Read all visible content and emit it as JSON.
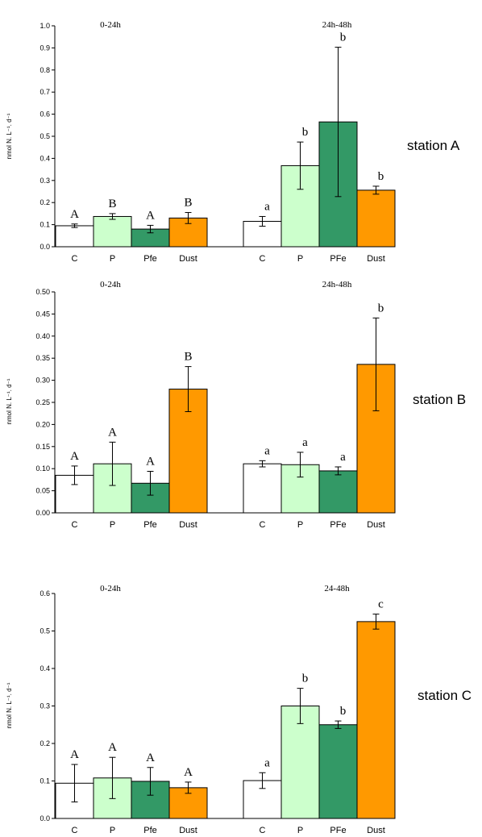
{
  "colors": {
    "C": "#ffffff",
    "P": "#ccffcc",
    "Pfe": "#339966",
    "Dust": "#ff9900"
  },
  "chart_data": [
    {
      "type": "bar",
      "station_label": "station A",
      "ylabel": "nmol N. L⁻¹. d⁻¹",
      "ylim": [
        0,
        1.0
      ],
      "yticks": [
        "0.0",
        "0.1",
        "0.2",
        "0.3",
        "0.4",
        "0.5",
        "0.6",
        "0.7",
        "0.8",
        "0.9",
        "1.0"
      ],
      "groups": [
        {
          "label": "0-24h",
          "categories": [
            "C",
            "P",
            "Pfe",
            "Dust"
          ],
          "values": [
            0.095,
            0.137,
            0.08,
            0.13
          ],
          "errors": [
            0.008,
            0.013,
            0.017,
            0.025
          ],
          "letters": [
            "A",
            "B",
            "A",
            "B"
          ]
        },
        {
          "label": "24h-48h",
          "categories": [
            "C",
            "P",
            "PFe",
            "Dust"
          ],
          "values": [
            0.115,
            0.367,
            0.565,
            0.256
          ],
          "errors": [
            0.022,
            0.107,
            0.338,
            0.018
          ],
          "letters": [
            "a",
            "b",
            "b",
            "b"
          ]
        }
      ]
    },
    {
      "type": "bar",
      "station_label": "station B",
      "ylabel": "nmol N. L⁻¹. d⁻¹",
      "ylim": [
        0,
        0.5
      ],
      "yticks": [
        "0.00",
        "0.05",
        "0.10",
        "0.15",
        "0.20",
        "0.25",
        "0.30",
        "0.35",
        "0.40",
        "0.45",
        "0.50"
      ],
      "groups": [
        {
          "label": "0-24h",
          "categories": [
            "C",
            "P",
            "Pfe",
            "Dust"
          ],
          "values": [
            0.085,
            0.111,
            0.067,
            0.28
          ],
          "errors": [
            0.021,
            0.049,
            0.027,
            0.051
          ],
          "letters": [
            "A",
            "A",
            "A",
            "B"
          ]
        },
        {
          "label": "24h-48h",
          "categories": [
            "C",
            "P",
            "PFe",
            "Dust"
          ],
          "values": [
            0.111,
            0.109,
            0.095,
            0.336
          ],
          "errors": [
            0.007,
            0.028,
            0.009,
            0.105
          ],
          "letters": [
            "a",
            "a",
            "a",
            "b"
          ]
        }
      ]
    },
    {
      "type": "bar",
      "station_label": "station C",
      "ylabel": "nmol N. L⁻¹. d⁻¹",
      "ylim": [
        0,
        0.6
      ],
      "yticks": [
        "0.0",
        "0.1",
        "0.2",
        "0.3",
        "0.4",
        "0.5",
        "0.6"
      ],
      "groups": [
        {
          "label": "0-24h",
          "categories": [
            "C",
            "P",
            "Pfe",
            "Dust"
          ],
          "values": [
            0.094,
            0.108,
            0.099,
            0.082
          ],
          "errors": [
            0.05,
            0.055,
            0.037,
            0.015
          ],
          "letters": [
            "A",
            "A",
            "A",
            "A"
          ]
        },
        {
          "label": "24-48h",
          "categories": [
            "C",
            "P",
            "PFe",
            "Dust"
          ],
          "values": [
            0.101,
            0.3,
            0.25,
            0.525
          ],
          "errors": [
            0.021,
            0.047,
            0.01,
            0.02
          ],
          "letters": [
            "a",
            "b",
            "b",
            "c"
          ]
        }
      ]
    }
  ]
}
